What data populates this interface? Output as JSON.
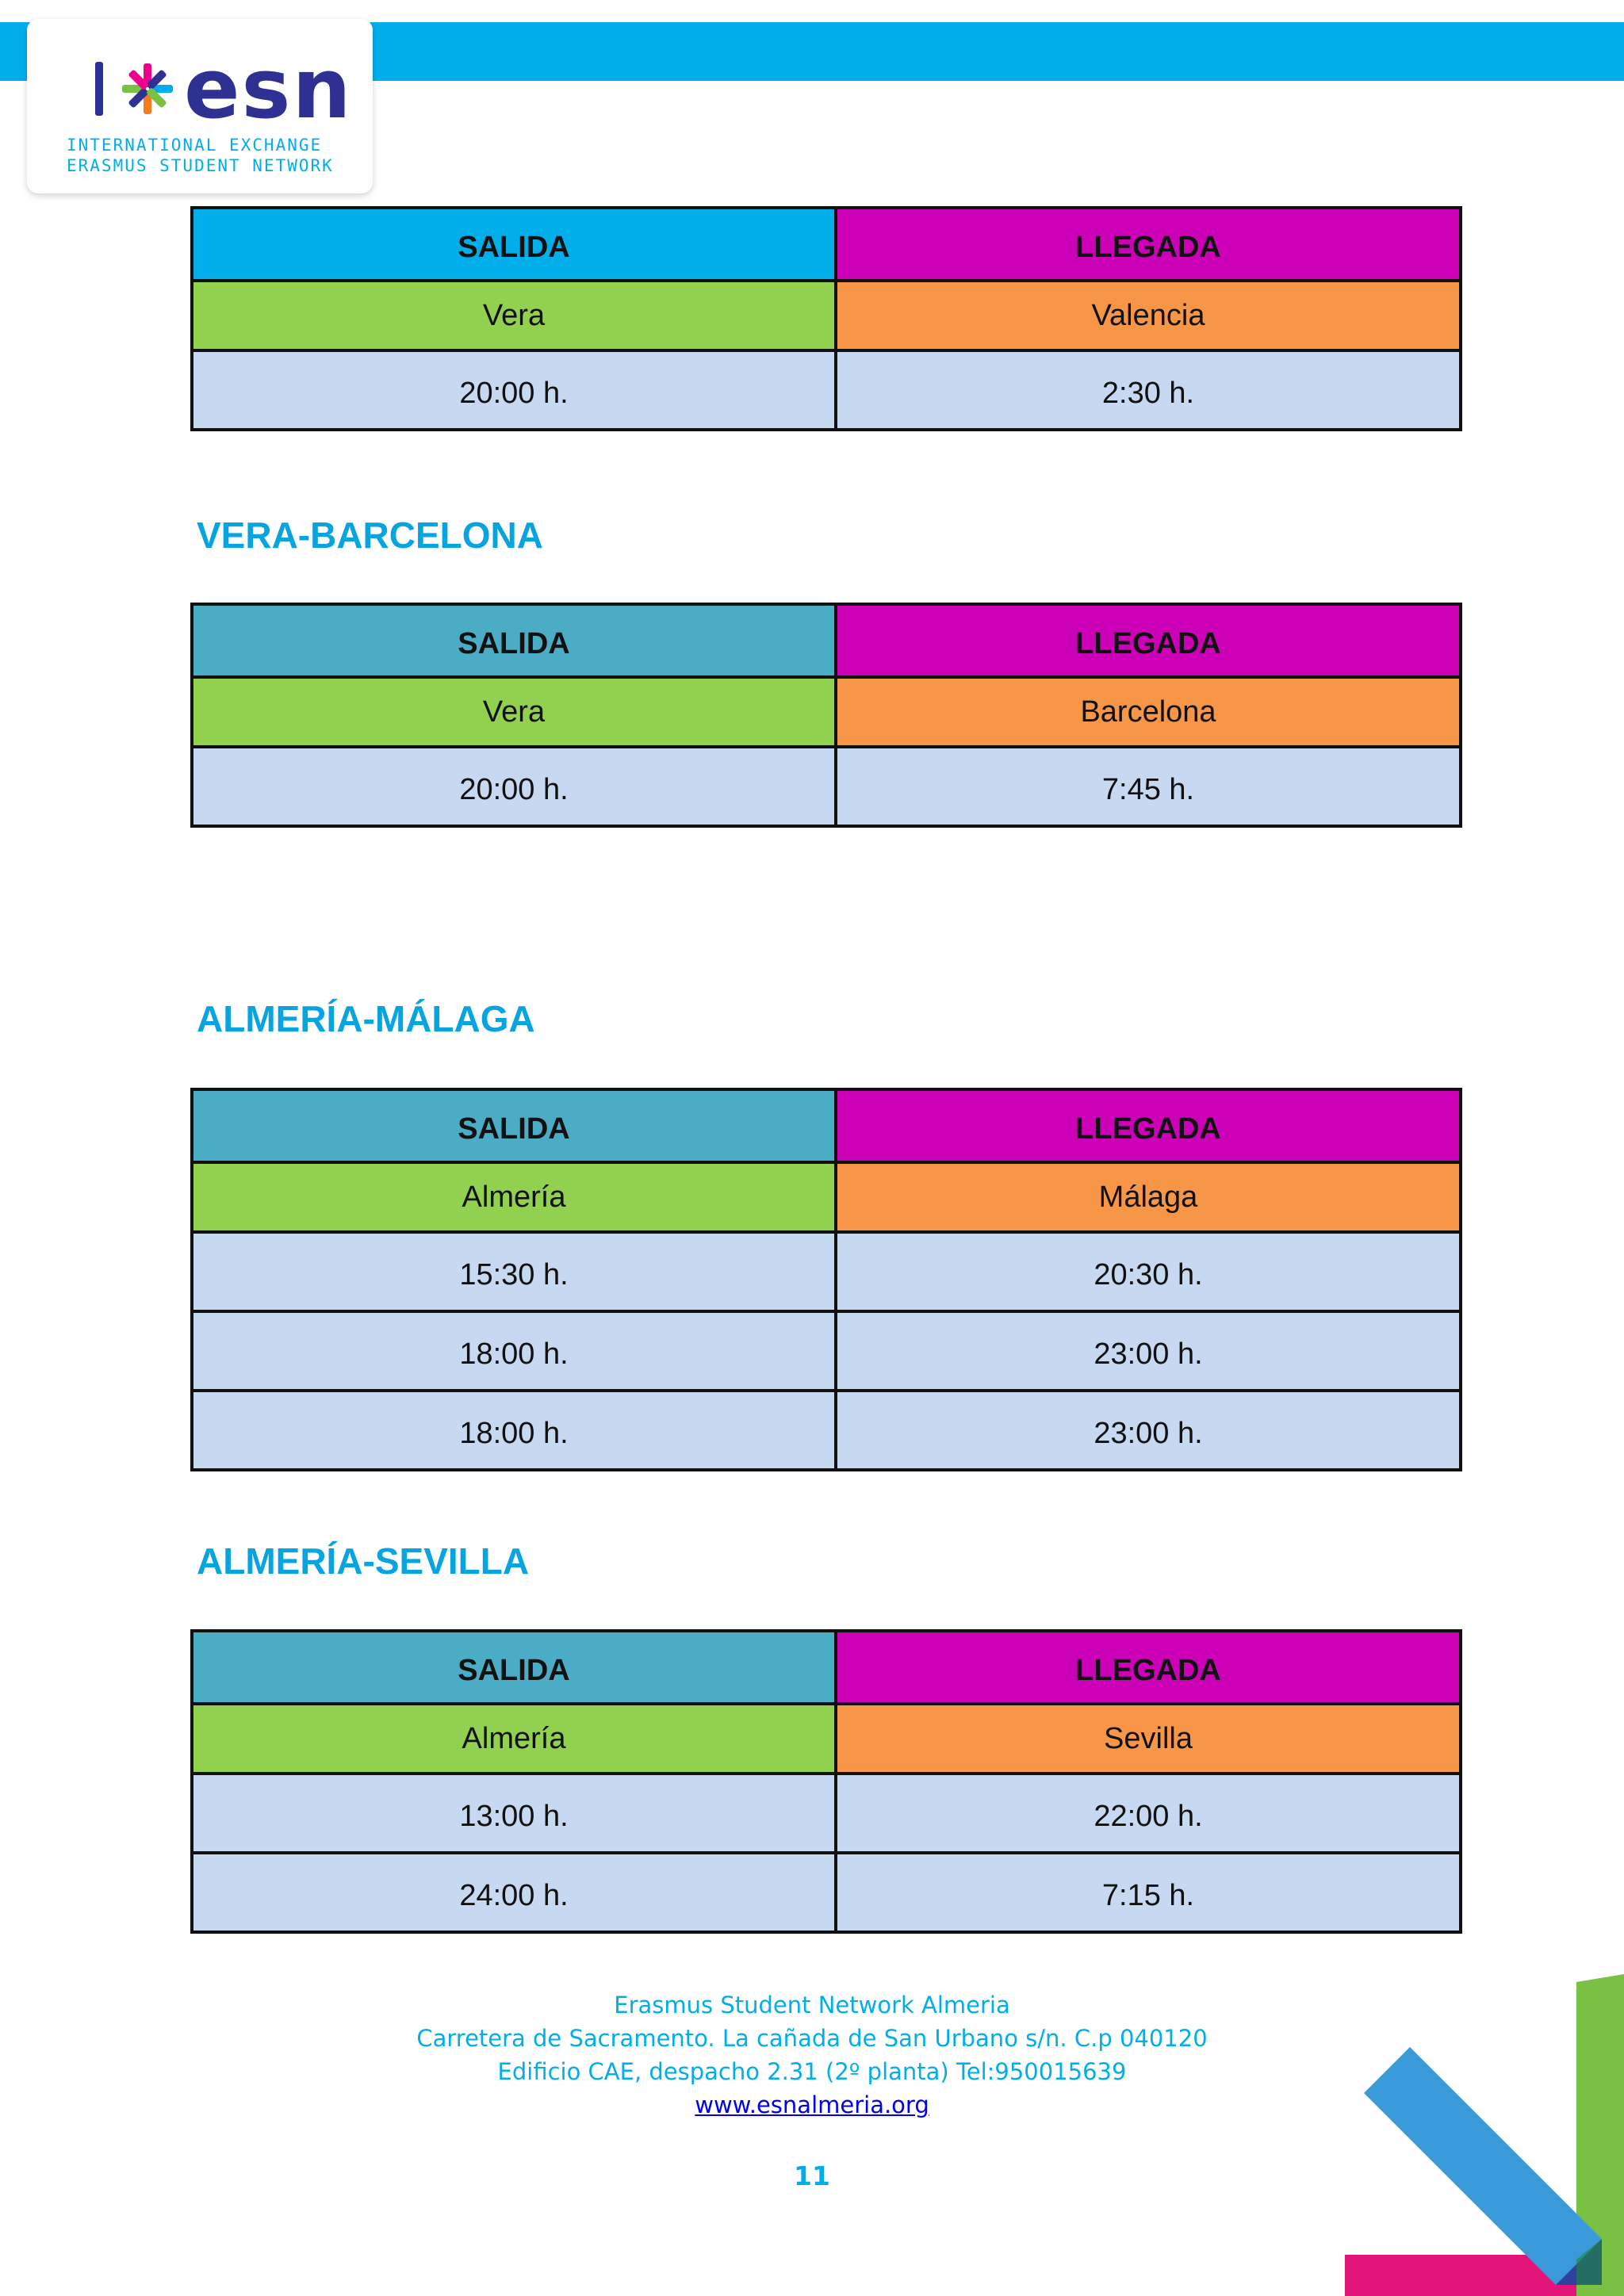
{
  "header": {
    "logo": {
      "wordmark": "esn",
      "line1": "INTERNATIONAL EXCHANGE",
      "line2": "ERASMUS STUDENT NETWORK"
    },
    "colors": {
      "band": "#02aeea"
    }
  },
  "sections": [
    {
      "title": "",
      "departure_header": "SALIDA",
      "arrival_header": "LLEGADA",
      "from": "Vera",
      "to": "Valencia",
      "times": [
        {
          "departure": "20:00 h.",
          "arrival": "2:30 h."
        }
      ]
    },
    {
      "title": "VERA-BARCELONA",
      "departure_header": "SALIDA",
      "arrival_header": "LLEGADA",
      "from": "Vera",
      "to": "Barcelona",
      "times": [
        {
          "departure": "20:00 h.",
          "arrival": "7:45 h."
        }
      ]
    },
    {
      "title": "ALMERÍA-MÁLAGA",
      "departure_header": "SALIDA",
      "arrival_header": "LLEGADA",
      "from": "Almería",
      "to": "Málaga",
      "times": [
        {
          "departure": "15:30 h.",
          "arrival": "20:30 h."
        },
        {
          "departure": "18:00 h.",
          "arrival": "23:00 h."
        },
        {
          "departure": "18:00 h.",
          "arrival": "23:00 h."
        }
      ]
    },
    {
      "title": "ALMERÍA-SEVILLA",
      "departure_header": "SALIDA",
      "arrival_header": "LLEGADA",
      "from": "Almería",
      "to": "Sevilla",
      "times": [
        {
          "departure": "13:00 h.",
          "arrival": "22:00 h."
        },
        {
          "departure": "24:00 h.",
          "arrival": "7:15 h."
        }
      ]
    }
  ],
  "footer": {
    "org": "Erasmus Student Network Almeria",
    "address": "Carretera de Sacramento. La cañada de San Urbano s/n. C.p 040120",
    "office": "Edificio CAE, despacho 2.31 (2º planta) Tel:950015639",
    "website": "www.esnalmeria.org",
    "page_number": "11"
  }
}
